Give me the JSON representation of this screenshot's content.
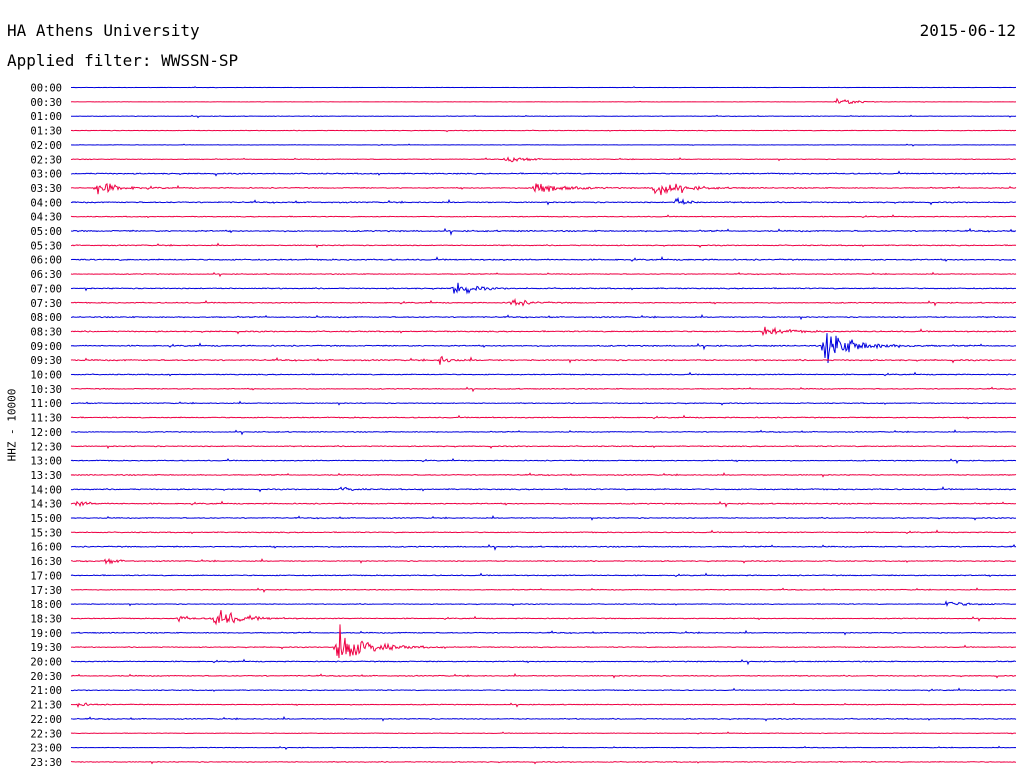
{
  "header": {
    "station": "HA Athens University",
    "date": "2015-06-12",
    "filter_label": "Applied filter: WWSSN-SP"
  },
  "chart_data": {
    "type": "line",
    "title": "HA Athens University",
    "ylabel": "HHZ - 10000",
    "colors": [
      "#0000dd",
      "#ee0044"
    ],
    "rows": [
      "00:00",
      "00:30",
      "01:00",
      "01:30",
      "02:00",
      "02:30",
      "03:00",
      "03:30",
      "04:00",
      "04:30",
      "05:00",
      "05:30",
      "06:00",
      "06:30",
      "07:00",
      "07:30",
      "08:00",
      "08:30",
      "09:00",
      "09:30",
      "10:00",
      "10:30",
      "11:00",
      "11:30",
      "12:00",
      "12:30",
      "13:00",
      "13:30",
      "14:00",
      "14:30",
      "15:00",
      "15:30",
      "16:00",
      "16:30",
      "17:00",
      "17:30",
      "18:00",
      "18:30",
      "19:00",
      "19:30",
      "20:00",
      "20:30",
      "21:00",
      "21:30",
      "22:00",
      "22:30",
      "23:00",
      "23:30"
    ],
    "noise": [
      0.3,
      0.3,
      0.5,
      0.6,
      0.4,
      0.7,
      1.2,
      1.0,
      1.2,
      0.8,
      1.3,
      1.0,
      1.3,
      0.8,
      1.1,
      1.0,
      1.1,
      1.2,
      1.2,
      1.3,
      1.0,
      0.9,
      0.9,
      1.0,
      0.9,
      1.0,
      0.9,
      1.0,
      1.2,
      1.1,
      1.0,
      1.0,
      1.1,
      1.0,
      1.0,
      0.8,
      0.8,
      0.9,
      1.0,
      0.9,
      1.0,
      1.0,
      0.9,
      0.8,
      1.0,
      0.6,
      0.6,
      0.9
    ],
    "events": [
      {
        "row": 1,
        "x": 0.81,
        "a": 7,
        "d": 0.015
      },
      {
        "row": 5,
        "x": 0.46,
        "a": 5,
        "d": 0.015
      },
      {
        "row": 7,
        "x": 0.026,
        "a": 9,
        "d": 0.02
      },
      {
        "row": 7,
        "x": 0.49,
        "a": 13,
        "d": 0.02
      },
      {
        "row": 7,
        "x": 0.617,
        "a": 14,
        "d": 0.02
      },
      {
        "row": 8,
        "x": 0.64,
        "a": 6,
        "d": 0.01
      },
      {
        "row": 14,
        "x": 0.405,
        "a": 12,
        "d": 0.015
      },
      {
        "row": 15,
        "x": 0.464,
        "a": 6,
        "d": 0.015
      },
      {
        "row": 17,
        "x": 0.732,
        "a": 6,
        "d": 0.02
      },
      {
        "row": 18,
        "x": 0.796,
        "a": 24,
        "d": 0.025
      },
      {
        "row": 19,
        "x": 0.39,
        "a": 6,
        "d": 0.01
      },
      {
        "row": 28,
        "x": 0.285,
        "a": 4,
        "d": 0.01
      },
      {
        "row": 29,
        "x": 0.005,
        "a": 4,
        "d": 0.01
      },
      {
        "row": 33,
        "x": 0.035,
        "a": 4,
        "d": 0.01
      },
      {
        "row": 36,
        "x": 0.925,
        "a": 4,
        "d": 0.02
      },
      {
        "row": 37,
        "x": 0.113,
        "a": 4,
        "d": 0.01
      },
      {
        "row": 37,
        "x": 0.15,
        "a": 16,
        "d": 0.02
      },
      {
        "row": 39,
        "x": 0.28,
        "a": 30,
        "d": 0.025
      },
      {
        "row": 43,
        "x": 0.007,
        "a": 3,
        "d": 0.01
      }
    ]
  }
}
